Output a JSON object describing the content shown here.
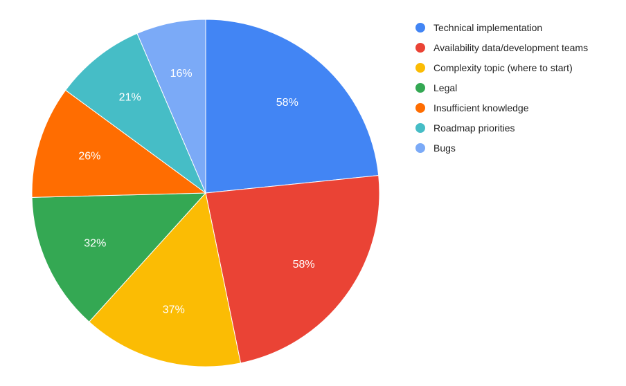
{
  "chart_data": {
    "type": "pie",
    "title": "",
    "categories": [
      "Technical implementation",
      "Availability data/development teams",
      "Complexity topic (where to start)",
      "Legal",
      "Insufficient knowledge",
      "Roadmap priorities",
      "Bugs"
    ],
    "values": [
      58,
      58,
      37,
      32,
      26,
      21,
      16
    ],
    "labels": [
      "58%",
      "58%",
      "37%",
      "32%",
      "26%",
      "21%",
      "16%"
    ],
    "colors": [
      "#4285f4",
      "#ea4335",
      "#fbbc04",
      "#34a853",
      "#ff6d01",
      "#46bdc6",
      "#7baaf7"
    ],
    "legend_position": "right",
    "start_angle": "top",
    "direction": "clockwise"
  }
}
